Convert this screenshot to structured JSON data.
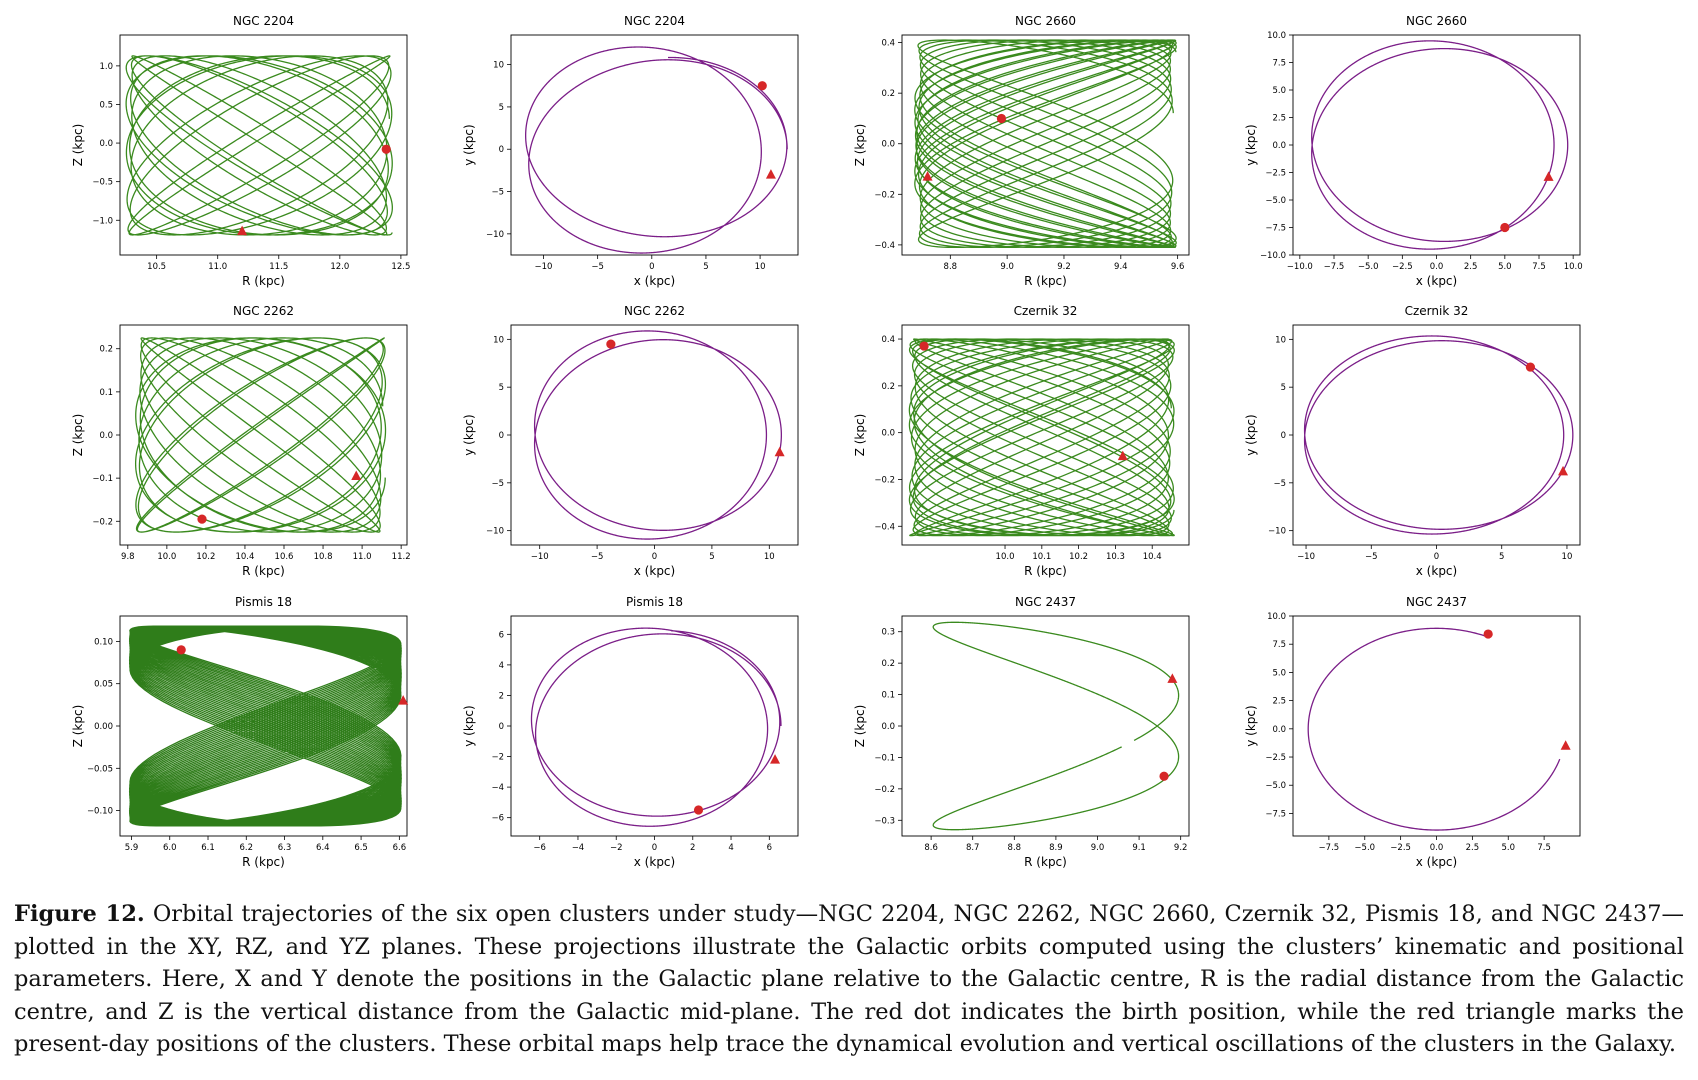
{
  "chart_data": [
    {
      "id": "ngc2204_rz",
      "type": "line",
      "plane": "RZ",
      "title": "NGC 2204",
      "xlabel": "R (kpc)",
      "ylabel": "Z (kpc)",
      "xlim": [
        10.2,
        12.55
      ],
      "ylim": [
        -1.45,
        1.4
      ],
      "xticks": [
        "10.5",
        "11.0",
        "11.5",
        "12.0",
        "12.5"
      ],
      "yticks": [
        "1.0",
        "0.5",
        "0.0",
        "−0.5",
        "−1.0"
      ],
      "color": "#3a8a1e",
      "orbit": {
        "kind": "box",
        "R0": 11.34,
        "A": 1.09,
        "Z0": -0.03,
        "B": 1.16,
        "fR": 1.0,
        "fZ": 0.91,
        "t1": 14
      },
      "birth": [
        12.38,
        -0.08
      ],
      "present": [
        11.2,
        -1.14
      ]
    },
    {
      "id": "ngc2204_xy",
      "type": "line",
      "plane": "XY",
      "title": "NGC 2204",
      "xlabel": "x (kpc)",
      "ylabel": "y (kpc)",
      "xlim": [
        -13,
        13.5
      ],
      "ylim": [
        -12.5,
        13.5
      ],
      "xticks": [
        "−10",
        "−5",
        "0",
        "5",
        "10"
      ],
      "yticks": [
        "10",
        "5",
        "0",
        "−5",
        "−10"
      ],
      "color": "#7b1e88",
      "orbit": {
        "kind": "rosette",
        "Rm": 11.3,
        "A": 1.2,
        "nr": 1.48,
        "t1": 14
      },
      "birth": [
        10.2,
        7.5
      ],
      "present": [
        11.0,
        -3.0
      ]
    },
    {
      "id": "ngc2660_rz",
      "type": "line",
      "plane": "RZ",
      "title": "NGC 2660",
      "xlabel": "R (kpc)",
      "ylabel": "Z (kpc)",
      "xlim": [
        8.63,
        9.64
      ],
      "ylim": [
        -0.44,
        0.43
      ],
      "xticks": [
        "8.8",
        "9.0",
        "9.2",
        "9.4",
        "9.6"
      ],
      "yticks": [
        "0.4",
        "0.2",
        "0.0",
        "−0.2",
        "−0.4"
      ],
      "color": "#3a8a1e",
      "orbit": {
        "kind": "box",
        "R0": 9.135,
        "A": 0.46,
        "Z0": 0.0,
        "B": 0.41,
        "fR": 2.0,
        "fZ": 1.02,
        "t1": 14
      },
      "birth": [
        8.98,
        0.1
      ],
      "present": [
        8.72,
        -0.13
      ]
    },
    {
      "id": "ngc2660_xy",
      "type": "line",
      "plane": "XY",
      "title": "NGC 2660",
      "xlabel": "x (kpc)",
      "ylabel": "y (kpc)",
      "xlim": [
        -10.5,
        10.5
      ],
      "ylim": [
        -10,
        10
      ],
      "xticks": [
        "−10.0",
        "−7.5",
        "−5.0",
        "−2.5",
        "0.0",
        "2.5",
        "5.0",
        "7.5",
        "10.0"
      ],
      "yticks": [
        "10.0",
        "7.5",
        "5.0",
        "2.5",
        "0.0",
        "−2.5",
        "−5.0",
        "−7.5",
        "−10.0"
      ],
      "color": "#7b1e88",
      "orbit": {
        "kind": "rosette",
        "Rm": 9.1,
        "A": 0.5,
        "nr": 1.5,
        "t1": 14
      },
      "birth": [
        5.0,
        -7.5
      ],
      "present": [
        8.2,
        -2.9
      ]
    },
    {
      "id": "ngc2262_rz",
      "type": "line",
      "plane": "RZ",
      "title": "NGC 2262",
      "xlabel": "R (kpc)",
      "ylabel": "Z (kpc)",
      "xlim": [
        9.76,
        11.23
      ],
      "ylim": [
        -0.255,
        0.255
      ],
      "xticks": [
        "9.8",
        "10.0",
        "10.2",
        "10.4",
        "10.6",
        "10.8",
        "11.0",
        "11.2"
      ],
      "yticks": [
        "0.2",
        "0.1",
        "0.0",
        "−0.1",
        "−0.2"
      ],
      "color": "#3a8a1e",
      "orbit": {
        "kind": "box",
        "R0": 10.48,
        "A": 0.64,
        "Z0": 0.0,
        "B": 0.225,
        "fR": 1.0,
        "fZ": 0.92,
        "t1": 14
      },
      "birth": [
        10.18,
        -0.195
      ],
      "present": [
        10.97,
        -0.095
      ]
    },
    {
      "id": "ngc2262_xy",
      "type": "line",
      "plane": "XY",
      "title": "NGC 2262",
      "xlabel": "x (kpc)",
      "ylabel": "y (kpc)",
      "xlim": [
        -12.5,
        12.5
      ],
      "ylim": [
        -11.5,
        11.5
      ],
      "xticks": [
        "−10",
        "−5",
        "0",
        "5",
        "10"
      ],
      "yticks": [
        "10",
        "5",
        "0",
        "−5",
        "−10"
      ],
      "color": "#7b1e88",
      "orbit": {
        "kind": "rosette",
        "Rm": 10.4,
        "A": 0.65,
        "nr": 1.5,
        "t1": 14
      },
      "birth": [
        -3.8,
        9.5
      ],
      "present": [
        10.9,
        -1.8
      ]
    },
    {
      "id": "czernik32_rz",
      "type": "line",
      "plane": "RZ",
      "title": "Czernik 32",
      "xlabel": "R (kpc)",
      "ylabel": "Z (kpc)",
      "xlim": [
        9.72,
        10.5
      ],
      "ylim": [
        -0.48,
        0.46
      ],
      "xticks": [
        "10.0",
        "10.1",
        "10.2",
        "10.3",
        "10.4"
      ],
      "yticks": [
        "0.4",
        "0.2",
        "0.0",
        "−0.2",
        "−0.4"
      ],
      "color": "#3a8a1e",
      "orbit": {
        "kind": "box",
        "R0": 10.1,
        "A": 0.36,
        "Z0": -0.02,
        "B": 0.42,
        "fR": 2.0,
        "fZ": 1.13,
        "t1": 14
      },
      "birth": [
        9.78,
        0.37
      ],
      "present": [
        10.32,
        -0.1
      ]
    },
    {
      "id": "czernik32_xy",
      "type": "line",
      "plane": "XY",
      "title": "Czernik 32",
      "xlabel": "x (kpc)",
      "ylabel": "y (kpc)",
      "xlim": [
        -11,
        11
      ],
      "ylim": [
        -11.5,
        11.5
      ],
      "xticks": [
        "−10",
        "−5",
        "0",
        "5",
        "10"
      ],
      "yticks": [
        "10",
        "5",
        "0",
        "−5",
        "−10"
      ],
      "color": "#7b1e88",
      "orbit": {
        "kind": "rosette",
        "Rm": 10.1,
        "A": 0.35,
        "nr": 1.5,
        "t1": 14
      },
      "birth": [
        7.2,
        7.1
      ],
      "present": [
        9.7,
        -3.8
      ]
    },
    {
      "id": "pismis18_rz",
      "type": "line",
      "plane": "RZ",
      "title": "Pismis 18",
      "xlabel": "R (kpc)",
      "ylabel": "Z (kpc)",
      "xlim": [
        5.87,
        6.62
      ],
      "ylim": [
        -0.13,
        0.13
      ],
      "xticks": [
        "5.9",
        "6.0",
        "6.1",
        "6.2",
        "6.3",
        "6.4",
        "6.5",
        "6.6"
      ],
      "yticks": [
        "0.10",
        "0.05",
        "0.00",
        "−0.05",
        "−0.10"
      ],
      "color": "#2f7d1a",
      "orbit": {
        "kind": "box",
        "R0": 6.25,
        "A": 0.355,
        "Z0": 0.0,
        "B": 0.118,
        "fR": 2.0,
        "fZ": 1.003,
        "t1": 36,
        "Ad": 0.004
      },
      "birth": [
        6.03,
        0.09
      ],
      "present": [
        6.61,
        0.03
      ]
    },
    {
      "id": "pismis18_xy",
      "type": "line",
      "plane": "XY",
      "title": "Pismis 18",
      "xlabel": "x (kpc)",
      "ylabel": "y (kpc)",
      "xlim": [
        -7.5,
        7.5
      ],
      "ylim": [
        -7.2,
        7.2
      ],
      "xticks": [
        "−6",
        "−4",
        "−2",
        "0",
        "2",
        "4",
        "6"
      ],
      "yticks": [
        "6",
        "4",
        "2",
        "0",
        "−2",
        "−4",
        "−6"
      ],
      "color": "#7b1e88",
      "orbit": {
        "kind": "rosette",
        "Rm": 6.25,
        "A": 0.36,
        "nr": 1.45,
        "t1": 14
      },
      "birth": [
        2.3,
        -5.5
      ],
      "present": [
        6.3,
        -2.2
      ]
    },
    {
      "id": "ngc2437_rz",
      "type": "line",
      "plane": "RZ",
      "title": "NGC 2437",
      "xlabel": "R (kpc)",
      "ylabel": "Z (kpc)",
      "xlim": [
        8.53,
        9.22
      ],
      "ylim": [
        -0.35,
        0.35
      ],
      "xticks": [
        "8.6",
        "8.7",
        "8.8",
        "8.9",
        "9.0",
        "9.1",
        "9.2"
      ],
      "yticks": [
        "0.3",
        "0.2",
        "0.1",
        "0.0",
        "−0.1",
        "−0.2",
        "−0.3"
      ],
      "color": "#3a8a1e",
      "orbit": {
        "kind": "box",
        "R0": 8.9,
        "A": 0.295,
        "Z0": 0.0,
        "B": 0.33,
        "fR": 2.0,
        "fZ": 1.0,
        "t0": -0.07,
        "t1": 0.92,
        "Ad": 0
      },
      "birth": [
        9.16,
        -0.16
      ],
      "present": [
        9.18,
        0.15
      ]
    },
    {
      "id": "ngc2437_xy",
      "type": "line",
      "plane": "XY",
      "title": "NGC 2437",
      "xlabel": "x (kpc)",
      "ylabel": "y (kpc)",
      "xlim": [
        -10,
        10
      ],
      "ylim": [
        -9.5,
        10
      ],
      "xticks": [
        "−7.5",
        "−5.0",
        "−2.5",
        "0.0",
        "2.5",
        "5.0",
        "7.5"
      ],
      "yticks": [
        "10.0",
        "7.5",
        "5.0",
        "2.5",
        "0.0",
        "−2.5",
        "−5.0",
        "−7.5"
      ],
      "color": "#7b1e88",
      "orbit": {
        "kind": "arc",
        "a0": 1.16,
        "a1": 5.98,
        "r0": 8.9,
        "r1": 9.0
      },
      "birth": [
        3.6,
        8.4
      ],
      "present": [
        9.0,
        -1.5
      ]
    }
  ],
  "marker_color": "#d62728",
  "caption": {
    "label": "Figure 12.",
    "text": "Orbital trajectories of the six open clusters under study—NGC 2204, NGC 2262, NGC 2660, Czernik 32, Pismis 18, and NGC 2437—plotted in the XY, RZ, and YZ planes. These projections illustrate the Galactic orbits computed using the clusters’ kinematic and positional parameters. Here, X and Y denote the positions in the Galactic plane relative to the Galactic centre, R is the radial distance from the Galactic centre, and Z is the vertical distance from the Galactic mid-plane. The red dot indicates the birth position, while the red triangle marks the present-day positions of the clusters. These orbital maps help trace the dynamical evolution and vertical oscillations of the clusters in the Galaxy."
  }
}
